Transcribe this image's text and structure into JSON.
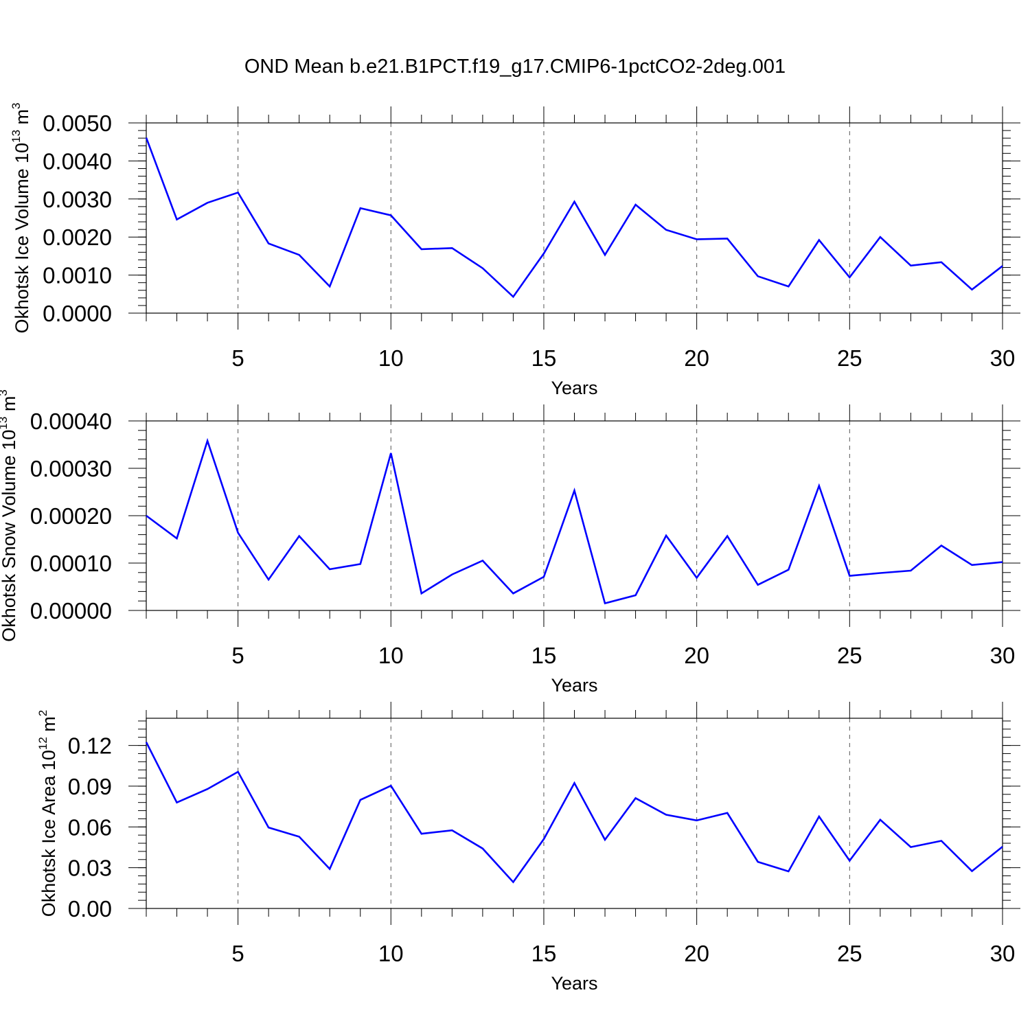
{
  "title": "OND Mean b.e21.B1PCT.f19_g17.CMIP6-1pctCO2-2deg.001",
  "line_color": "#0000ff",
  "chart_data": [
    {
      "type": "line",
      "ylabel": {
        "text": "Okhotsk Ice Volume 10",
        "exp": "13",
        "unit": "m",
        "unit_exp": "3"
      },
      "xlabel": "Years",
      "xlim": [
        2,
        30
      ],
      "ylim": [
        0,
        0.005
      ],
      "y_ticks": [
        "0.0000",
        "0.0010",
        "0.0020",
        "0.0030",
        "0.0040",
        "0.0050"
      ],
      "y_tick_values": [
        0,
        0.001,
        0.002,
        0.003,
        0.004,
        0.005
      ],
      "y_minor_step": 0.0002,
      "x_ticks": [
        5,
        10,
        15,
        20,
        25,
        30
      ],
      "grid": "vertical dashed",
      "series": [
        {
          "x": [
            2,
            3,
            4,
            5,
            6,
            7,
            8,
            9,
            10,
            11,
            12,
            13,
            14,
            15,
            16,
            17,
            18,
            19,
            20,
            21,
            22,
            23,
            24,
            25,
            26,
            27,
            28,
            29,
            30
          ],
          "values": [
            0.00461,
            0.00246,
            0.0029,
            0.00317,
            0.00183,
            0.00153,
            0.0007,
            0.00276,
            0.00257,
            0.00168,
            0.00171,
            0.00118,
            0.00043,
            0.00157,
            0.00293,
            0.00153,
            0.00285,
            0.00219,
            0.00194,
            0.00196,
            0.00097,
            0.0007,
            0.00192,
            0.00094,
            0.002,
            0.00125,
            0.00134,
            0.00062,
            0.00124
          ]
        }
      ]
    },
    {
      "type": "line",
      "ylabel": {
        "text": "Okhotsk Snow Volume 10",
        "exp": "13",
        "unit": "m",
        "unit_exp": "3"
      },
      "xlabel": "Years",
      "xlim": [
        2,
        30
      ],
      "ylim": [
        0,
        0.0004
      ],
      "y_ticks": [
        "0.00000",
        "0.00010",
        "0.00020",
        "0.00030",
        "0.00040"
      ],
      "y_tick_values": [
        0,
        0.0001,
        0.0002,
        0.0003,
        0.0004
      ],
      "y_minor_step": 2e-05,
      "x_ticks": [
        5,
        10,
        15,
        20,
        25,
        30
      ],
      "grid": "vertical dashed",
      "series": [
        {
          "x": [
            2,
            3,
            4,
            5,
            6,
            7,
            8,
            9,
            10,
            11,
            12,
            13,
            14,
            15,
            16,
            17,
            18,
            19,
            20,
            21,
            22,
            23,
            24,
            25,
            26,
            27,
            28,
            29,
            30
          ],
          "values": [
            0.0002,
            0.000152,
            0.000358,
            0.000164,
            6.5e-05,
            0.000157,
            8.7e-05,
            9.8e-05,
            0.000332,
            3.6e-05,
            7.6e-05,
            0.000105,
            3.6e-05,
            7.1e-05,
            0.000253,
            1.5e-05,
            3.2e-05,
            0.000158,
            6.9e-05,
            0.000157,
            5.4e-05,
            8.6e-05,
            0.000263,
            7.3e-05,
            7.9e-05,
            8.4e-05,
            0.000137,
            9.6e-05,
            0.000102
          ]
        }
      ]
    },
    {
      "type": "line",
      "ylabel": {
        "text": "Okhotsk Ice Area 10",
        "exp": "12",
        "unit": "m",
        "unit_exp": "2"
      },
      "xlabel": "Years",
      "xlim": [
        2,
        30
      ],
      "ylim": [
        0,
        0.14
      ],
      "y_ticks": [
        "0.00",
        "0.03",
        "0.06",
        "0.09",
        "0.12"
      ],
      "y_tick_values": [
        0,
        0.03,
        0.06,
        0.09,
        0.12
      ],
      "y_minor_step": 0.006,
      "x_ticks": [
        5,
        10,
        15,
        20,
        25,
        30
      ],
      "grid": "vertical dashed",
      "series": [
        {
          "x": [
            2,
            3,
            4,
            5,
            6,
            7,
            8,
            9,
            10,
            11,
            12,
            13,
            14,
            15,
            16,
            17,
            18,
            19,
            20,
            21,
            22,
            23,
            24,
            25,
            26,
            27,
            28,
            29,
            30
          ],
          "values": [
            0.1224,
            0.078,
            0.0879,
            0.1006,
            0.0596,
            0.0528,
            0.0291,
            0.0799,
            0.0903,
            0.055,
            0.0575,
            0.0441,
            0.0194,
            0.0511,
            0.0923,
            0.0506,
            0.0812,
            0.069,
            0.0648,
            0.0703,
            0.0343,
            0.0273,
            0.0677,
            0.0352,
            0.0653,
            0.0452,
            0.0498,
            0.0275,
            0.0455
          ]
        }
      ]
    }
  ]
}
